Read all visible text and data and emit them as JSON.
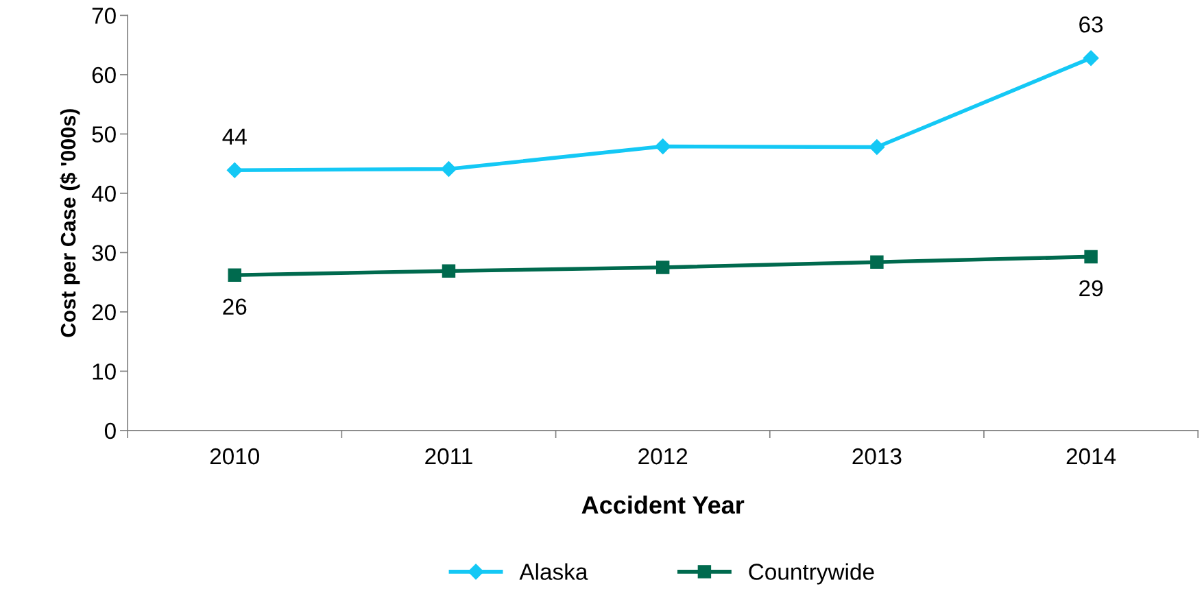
{
  "chart_data": {
    "type": "line",
    "xlabel": "Accident Year",
    "ylabel": "Cost per Case ($ '000s)",
    "categories": [
      "2010",
      "2011",
      "2012",
      "2013",
      "2014"
    ],
    "series": [
      {
        "name": "Alaska",
        "color": "#14c8f5",
        "marker": "diamond",
        "values": [
          43.9,
          44.1,
          47.9,
          47.8,
          62.8
        ],
        "value_labels": [
          "44",
          null,
          null,
          null,
          "63"
        ]
      },
      {
        "name": "Countrywide",
        "color": "#006a4e",
        "marker": "square",
        "values": [
          26.2,
          26.9,
          27.5,
          28.4,
          29.3
        ],
        "value_labels": [
          "26",
          null,
          null,
          null,
          "29"
        ]
      }
    ],
    "ylim": [
      0,
      70
    ],
    "yticks": [
      0,
      10,
      20,
      30,
      40,
      50,
      60,
      70
    ],
    "grid": false,
    "legend": "bottom",
    "line_style": "solid"
  }
}
